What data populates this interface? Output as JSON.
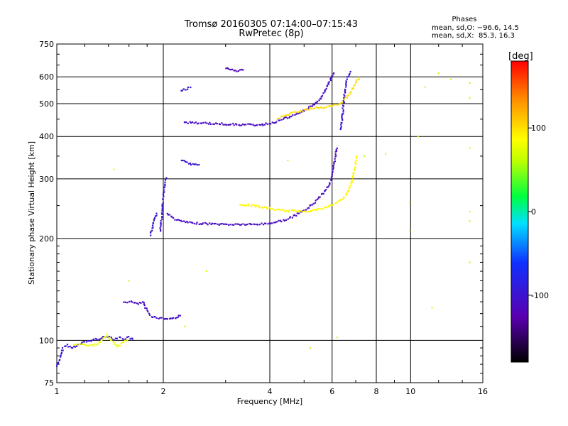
{
  "header": {
    "title": "Tromsø 20160305 07:14:00–07:15:43",
    "subtitle": "RwPretec (8p)",
    "stats_title": "Phases",
    "stats_line1": "mean, sd,O: −96.6, 14.5",
    "stats_line2": "mean, sd,X:  85.3, 16.3"
  },
  "chart_data": {
    "type": "scatter",
    "title": "Tromsø 20160305 07:14:00–07:15:43",
    "subtitle": "RwPretec (8p)",
    "xlabel": "Frequency [MHz]",
    "ylabel": "Stationary phase Virtual Height [km]",
    "x_scale": "log",
    "y_scale": "log",
    "xlim": [
      1,
      16
    ],
    "ylim": [
      75,
      750
    ],
    "x_ticks": [
      1,
      2,
      4,
      6,
      8,
      10,
      16
    ],
    "y_ticks": [
      75,
      100,
      200,
      300,
      400,
      500,
      600,
      750
    ],
    "grid": "major lines",
    "colorbar": {
      "label": "[deg]",
      "range": [
        -180,
        180
      ],
      "ticks": [
        -100,
        0,
        100
      ]
    },
    "series": [
      {
        "type": "curve",
        "points": [
          [
            1.0,
            84
          ],
          [
            1.02,
            88
          ],
          [
            1.04,
            95
          ],
          [
            1.07,
            97
          ],
          [
            1.1,
            95
          ],
          [
            1.15,
            97
          ],
          [
            1.2,
            99
          ],
          [
            1.25,
            100
          ],
          [
            1.3,
            101
          ],
          [
            1.35,
            102
          ],
          [
            1.4,
            103
          ],
          [
            1.45,
            101
          ],
          [
            1.5,
            102
          ],
          [
            1.55,
            101
          ],
          [
            1.6,
            102
          ],
          [
            1.65,
            100
          ]
        ],
        "phase": -100
      },
      {
        "type": "curve",
        "points": [
          [
            1.12,
            97
          ],
          [
            1.2,
            97
          ],
          [
            1.3,
            97
          ],
          [
            1.38,
            104
          ],
          [
            1.48,
            96
          ],
          [
            1.6,
            101
          ]
        ],
        "phase": 80
      },
      {
        "type": "curve",
        "points": [
          [
            1.55,
            130
          ],
          [
            1.62,
            130
          ],
          [
            1.7,
            128
          ],
          [
            1.75,
            130
          ],
          [
            1.78,
            125
          ],
          [
            1.82,
            120
          ],
          [
            1.85,
            118
          ],
          [
            1.9,
            117
          ],
          [
            2.0,
            116
          ],
          [
            2.1,
            116
          ],
          [
            2.2,
            117
          ],
          [
            2.25,
            120
          ]
        ],
        "phase": -110
      },
      {
        "type": "curve",
        "points": [
          [
            2.05,
            238
          ],
          [
            2.1,
            232
          ],
          [
            2.2,
            226
          ],
          [
            2.4,
            222
          ],
          [
            2.7,
            221
          ],
          [
            3.0,
            220
          ],
          [
            3.3,
            220
          ],
          [
            3.6,
            220
          ],
          [
            3.9,
            221
          ],
          [
            4.2,
            224
          ],
          [
            4.5,
            228
          ],
          [
            4.8,
            236
          ],
          [
            5.1,
            245
          ],
          [
            5.4,
            258
          ],
          [
            5.7,
            275
          ],
          [
            5.9,
            290
          ],
          [
            6.0,
            305
          ],
          [
            6.1,
            340
          ],
          [
            6.2,
            375
          ]
        ],
        "phase": -110
      },
      {
        "type": "curve",
        "points": [
          [
            3.3,
            252
          ],
          [
            3.6,
            250
          ],
          [
            3.9,
            246
          ],
          [
            4.2,
            243
          ],
          [
            4.5,
            241
          ],
          [
            4.8,
            241
          ],
          [
            5.1,
            241
          ],
          [
            5.4,
            243
          ],
          [
            5.7,
            246
          ],
          [
            6.0,
            251
          ],
          [
            6.3,
            258
          ],
          [
            6.6,
            270
          ],
          [
            6.8,
            290
          ],
          [
            6.95,
            320
          ],
          [
            7.05,
            355
          ]
        ],
        "phase": 90
      },
      {
        "type": "curve",
        "points": [
          [
            2.3,
            440
          ],
          [
            2.6,
            438
          ],
          [
            2.9,
            436
          ],
          [
            3.2,
            434
          ],
          [
            3.5,
            433
          ],
          [
            3.8,
            433
          ],
          [
            4.1,
            440
          ],
          [
            4.4,
            452
          ],
          [
            4.7,
            462
          ],
          [
            5.0,
            478
          ],
          [
            5.3,
            495
          ],
          [
            5.5,
            510
          ],
          [
            5.7,
            540
          ],
          [
            5.9,
            580
          ],
          [
            6.0,
            600
          ],
          [
            6.1,
            625
          ]
        ],
        "phase": -110
      },
      {
        "type": "curve",
        "points": [
          [
            4.2,
            453
          ],
          [
            4.6,
            468
          ],
          [
            4.9,
            475
          ],
          [
            5.2,
            484
          ],
          [
            5.5,
            486
          ],
          [
            5.9,
            490
          ],
          [
            6.3,
            500
          ],
          [
            6.7,
            530
          ],
          [
            7.0,
            575
          ],
          [
            7.2,
            600
          ]
        ],
        "phase": 100
      },
      {
        "type": "curve",
        "points": [
          [
            6.35,
            420
          ],
          [
            6.4,
            450
          ],
          [
            6.45,
            490
          ],
          [
            6.5,
            530
          ],
          [
            6.55,
            560
          ],
          [
            6.6,
            590
          ],
          [
            6.7,
            610
          ],
          [
            6.8,
            630
          ]
        ],
        "phase": -100
      },
      {
        "type": "curve",
        "points": [
          [
            2.25,
            545
          ],
          [
            2.4,
            560
          ]
        ],
        "phase": -100
      },
      {
        "type": "curve",
        "points": [
          [
            3.0,
            635
          ],
          [
            3.2,
            625
          ],
          [
            3.4,
            630
          ]
        ],
        "phase": -120
      },
      {
        "type": "curve",
        "points": [
          [
            2.25,
            340
          ],
          [
            2.4,
            332
          ],
          [
            2.55,
            330
          ]
        ],
        "phase": -100
      },
      {
        "type": "curve",
        "points": [
          [
            1.84,
            205
          ],
          [
            1.88,
            225
          ],
          [
            1.92,
            240
          ]
        ],
        "phase": -100
      },
      {
        "type": "curve",
        "points": [
          [
            1.96,
            210
          ],
          [
            1.98,
            235
          ],
          [
            2.0,
            265
          ],
          [
            2.02,
            290
          ],
          [
            2.04,
            305
          ]
        ],
        "phase": -100
      },
      {
        "type": "points",
        "points": [
          [
            1.45,
            320
          ],
          [
            1.6,
            150
          ],
          [
            2.3,
            110
          ],
          [
            2.65,
            160
          ],
          [
            4.5,
            340
          ],
          [
            5.2,
            95
          ],
          [
            6.2,
            102
          ],
          [
            7.4,
            350
          ],
          [
            8.5,
            355
          ],
          [
            10.5,
            400
          ],
          [
            11.5,
            125
          ],
          [
            12.0,
            615
          ],
          [
            13.0,
            590
          ],
          [
            14.7,
            575
          ],
          [
            14.7,
            370
          ],
          [
            14.7,
            240
          ],
          [
            14.7,
            225
          ],
          [
            14.7,
            520
          ],
          [
            9.95,
            210
          ],
          [
            9.95,
            255
          ],
          [
            11.0,
            560
          ],
          [
            14.7,
            170
          ]
        ],
        "phase": 60
      }
    ]
  }
}
